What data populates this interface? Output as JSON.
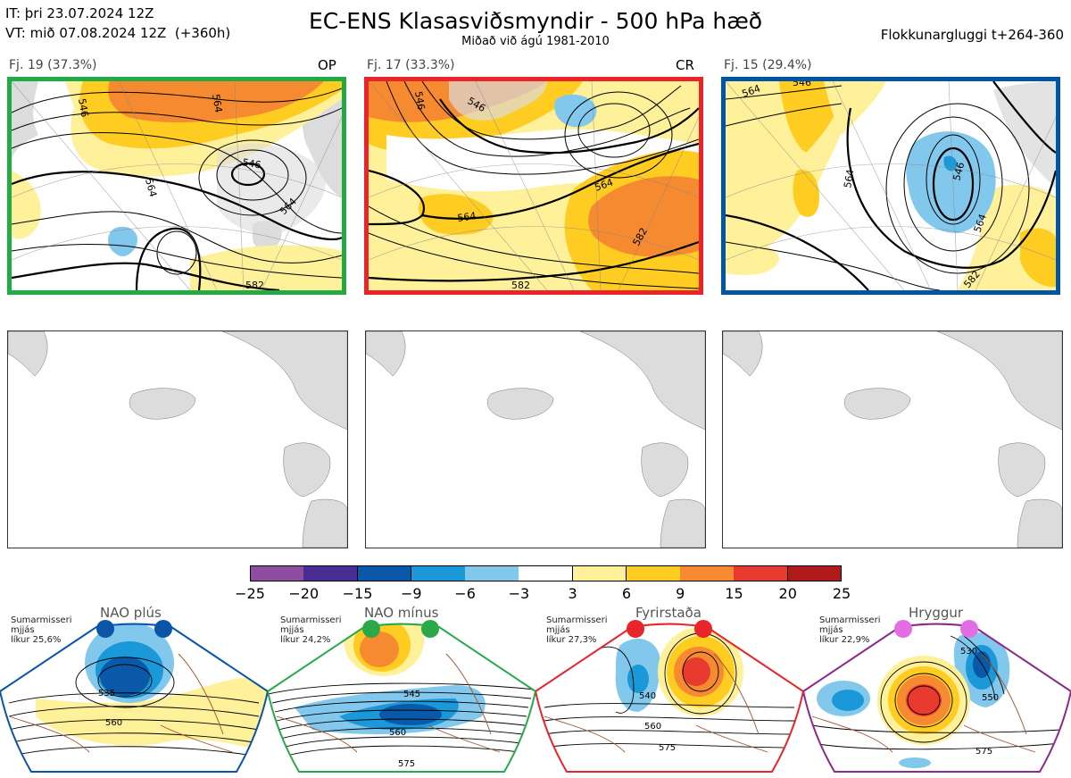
{
  "header": {
    "it_line": "IT: þri 23.07.2024 12Z",
    "vt_line": "VT: mið 07.08.2024 12Z  (+360h)",
    "title": "EC-ENS Klasasviðsmyndir - 500 hPa hæð",
    "subtitle": "Miðað við ágú 1981-2010",
    "window": "Flokkunargluggi t+264-360"
  },
  "chart_data": [
    {
      "type": "heatmap",
      "panels": [
        {
          "label": "Fj. 19 (37.3%)",
          "code": "OP",
          "border": "#22aa44",
          "contour_labels": [
            "546",
            "564",
            "546",
            "564",
            "564",
            "582"
          ],
          "anomaly_max": 15,
          "anomaly_min": -6
        },
        {
          "label": "Fj. 17 (33.3%)",
          "code": "CR",
          "border": "#e8252a",
          "contour_labels": [
            "546",
            "546",
            "564",
            "564",
            "582",
            "582"
          ],
          "anomaly_max": 15,
          "anomaly_min": -6
        },
        {
          "label": "Fj. 15 (29.4%)",
          "code": "",
          "border": "#0055a5",
          "contour_labels": [
            "564",
            "546",
            "546",
            "564",
            "564",
            "582"
          ],
          "anomaly_max": 9,
          "anomaly_min": -9
        }
      ]
    },
    {
      "type": "heatmap",
      "colorbar": {
        "ticks": [
          "−25",
          "−20",
          "−15",
          "−9",
          "−6",
          "−3",
          "3",
          "6",
          "9",
          "15",
          "20",
          "25"
        ],
        "colors": [
          "#8e4da0",
          "#4a2d94",
          "#0a58a8",
          "#1a98d8",
          "#82c8ec",
          "#ffffff",
          "#fff09a",
          "#ffcc22",
          "#f58a30",
          "#e83a2e",
          "#b01a1a"
        ]
      }
    },
    {
      "type": "heatmap",
      "regimes": [
        {
          "name": "NAO plús",
          "note": "Sumarmisseri\nmjjás\nlíkur 25,6%",
          "color": "#0b55a8",
          "dot_color": "#0b55a8",
          "contour_labels": [
            "535",
            "560"
          ]
        },
        {
          "name": "NAO mínus",
          "note": "Sumarmisseri\nmjjás\nlíkur 24,2%",
          "color": "#2aa84a",
          "dot_color": "#2aa84a",
          "contour_labels": [
            "545",
            "560",
            "575"
          ]
        },
        {
          "name": "Fyrirstaða",
          "note": "Sumarmisseri\nmjjás\nlíkur 27,3%",
          "color": "#e8252a",
          "dot_color": "#e8252a",
          "contour_labels": [
            "540",
            "560",
            "575"
          ]
        },
        {
          "name": "Hryggur",
          "note": "Sumarmisseri\nmjjás\nlíkur 22,9%",
          "color": "#8a2a8a",
          "dot_color": "#e36ee3",
          "contour_labels": [
            "530",
            "550",
            "575"
          ]
        }
      ]
    }
  ]
}
